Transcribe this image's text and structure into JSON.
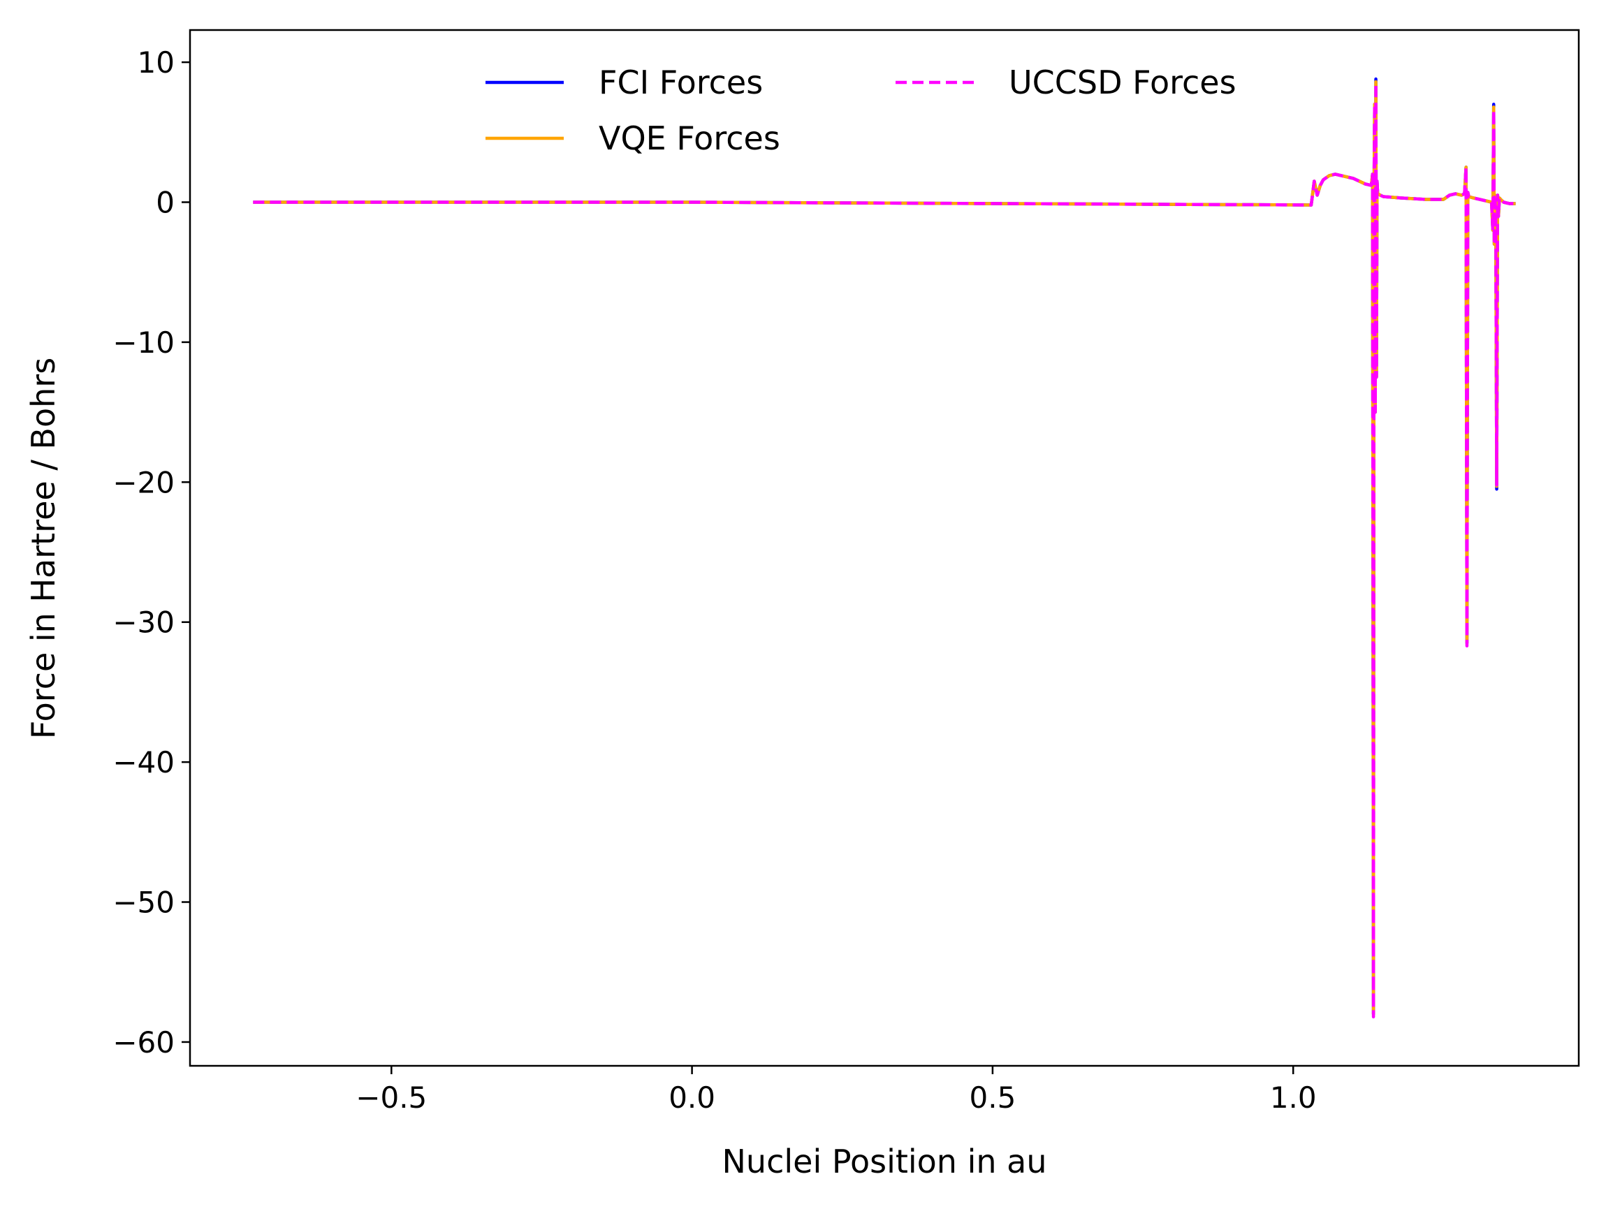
{
  "chart_data": {
    "type": "line",
    "title": "",
    "xlabel": "Nuclei Position in au",
    "ylabel": "Force in Hartree / Bohrs",
    "xlim": [
      -0.835,
      1.475
    ],
    "ylim": [
      -61.7,
      12.3
    ],
    "xticks": [
      -0.5,
      0.0,
      0.5,
      1.0
    ],
    "xtick_labels": [
      "−0.5",
      "0.0",
      "0.5",
      "1.0"
    ],
    "yticks": [
      10,
      0,
      -10,
      -20,
      -30,
      -40,
      -50,
      -60
    ],
    "ytick_labels": [
      "10",
      "0",
      "−10",
      "−20",
      "−30",
      "−40",
      "−50",
      "−60"
    ],
    "grid": false,
    "legend_position": "top-center",
    "legend_columns": 2,
    "series": [
      {
        "name": "FCI Forces",
        "color": "#0000ff",
        "dash": "solid",
        "x": [
          -0.73,
          0.0,
          1.03,
          1.035,
          1.04,
          1.045,
          1.05,
          1.06,
          1.07,
          1.08,
          1.09,
          1.1,
          1.11,
          1.12,
          1.13,
          1.132,
          1.1335,
          1.1345,
          1.1355,
          1.1365,
          1.1375,
          1.1385,
          1.1395,
          1.1405,
          1.145,
          1.15,
          1.18,
          1.22,
          1.25,
          1.26,
          1.27,
          1.28,
          1.285,
          1.2875,
          1.289,
          1.2905,
          1.292,
          1.3,
          1.31,
          1.32,
          1.33,
          1.332,
          1.3335,
          1.3345,
          1.3355,
          1.337,
          1.3385,
          1.34,
          1.3415,
          1.343,
          1.345,
          1.35,
          1.36,
          1.37
        ],
        "y": [
          0,
          0,
          -0.2,
          1.5,
          0.5,
          1.2,
          1.6,
          1.9,
          2.0,
          1.9,
          1.8,
          1.7,
          1.5,
          1.3,
          1.2,
          2.0,
          -58.0,
          1.0,
          7.0,
          -15.0,
          8.8,
          -12.5,
          1.5,
          0.6,
          0.5,
          0.4,
          0.3,
          0.2,
          0.2,
          0.5,
          0.6,
          0.5,
          0.6,
          2.5,
          -31.5,
          0.7,
          0.4,
          0.3,
          0.2,
          0.1,
          0.0,
          -2.0,
          7.0,
          -3.0,
          0.5,
          -1.0,
          -20.5,
          0.5,
          -1.0,
          0.3,
          0.2,
          0.0,
          -0.1,
          -0.1
        ]
      },
      {
        "name": "VQE Forces",
        "color": "#ffa500",
        "dash": "solid",
        "x": [
          -0.73,
          0.0,
          1.03,
          1.035,
          1.04,
          1.045,
          1.05,
          1.06,
          1.07,
          1.08,
          1.09,
          1.1,
          1.11,
          1.12,
          1.13,
          1.132,
          1.1335,
          1.1345,
          1.1355,
          1.1365,
          1.1375,
          1.1385,
          1.1395,
          1.1405,
          1.145,
          1.15,
          1.18,
          1.22,
          1.25,
          1.26,
          1.27,
          1.28,
          1.285,
          1.2875,
          1.289,
          1.2905,
          1.292,
          1.3,
          1.31,
          1.32,
          1.33,
          1.332,
          1.3335,
          1.3345,
          1.3355,
          1.337,
          1.3385,
          1.34,
          1.3415,
          1.343,
          1.345,
          1.35,
          1.36,
          1.37
        ],
        "y": [
          0,
          0,
          -0.2,
          1.5,
          0.5,
          1.2,
          1.6,
          1.9,
          2.0,
          1.9,
          1.8,
          1.7,
          1.5,
          1.3,
          1.2,
          2.0,
          -58.0,
          1.0,
          7.0,
          -15.0,
          8.6,
          -12.5,
          1.5,
          0.6,
          0.5,
          0.4,
          0.3,
          0.2,
          0.2,
          0.5,
          0.6,
          0.5,
          0.6,
          2.5,
          -31.5,
          0.7,
          0.4,
          0.3,
          0.2,
          0.1,
          0.0,
          -2.0,
          6.8,
          -3.0,
          0.5,
          -1.0,
          -20.3,
          0.5,
          -1.0,
          0.3,
          0.2,
          0.0,
          -0.1,
          -0.1
        ]
      },
      {
        "name": "UCCSD Forces",
        "color": "#ff00ff",
        "dash": "dashed",
        "x": [
          -0.73,
          0.0,
          1.03,
          1.035,
          1.04,
          1.045,
          1.05,
          1.06,
          1.07,
          1.08,
          1.09,
          1.1,
          1.11,
          1.12,
          1.13,
          1.132,
          1.1335,
          1.1345,
          1.1355,
          1.1365,
          1.1375,
          1.1385,
          1.1395,
          1.1405,
          1.145,
          1.15,
          1.18,
          1.22,
          1.25,
          1.26,
          1.27,
          1.28,
          1.285,
          1.2875,
          1.289,
          1.2905,
          1.292,
          1.3,
          1.31,
          1.32,
          1.33,
          1.332,
          1.3335,
          1.3345,
          1.3355,
          1.337,
          1.3385,
          1.34,
          1.3415,
          1.343,
          1.345,
          1.35,
          1.36,
          1.37
        ],
        "y": [
          0,
          0,
          -0.2,
          1.5,
          0.5,
          1.2,
          1.6,
          1.9,
          2.0,
          1.9,
          1.8,
          1.7,
          1.5,
          1.3,
          1.2,
          2.0,
          -58.2,
          1.0,
          7.0,
          -15.0,
          8.5,
          -12.5,
          1.5,
          0.6,
          0.5,
          0.4,
          0.3,
          0.2,
          0.2,
          0.5,
          0.6,
          0.5,
          0.6,
          2.5,
          -31.7,
          0.7,
          0.4,
          0.3,
          0.2,
          0.1,
          0.0,
          -2.0,
          6.6,
          -3.0,
          0.5,
          -1.0,
          -20.2,
          0.5,
          -1.0,
          0.3,
          0.2,
          0.0,
          -0.1,
          -0.1
        ]
      }
    ]
  }
}
